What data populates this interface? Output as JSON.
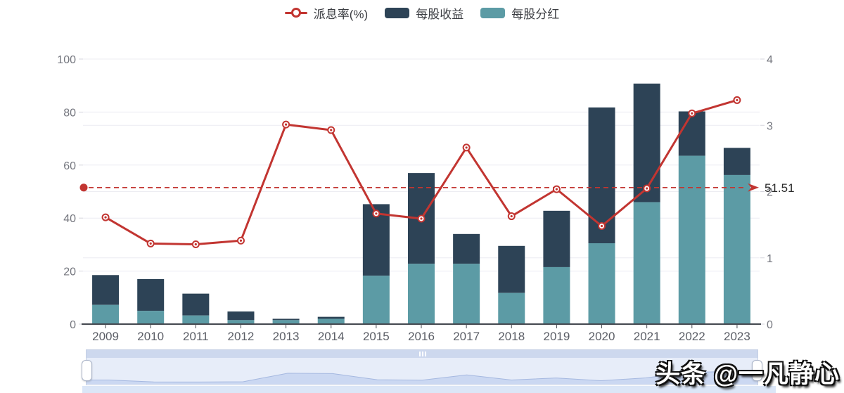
{
  "legend": {
    "items": [
      {
        "label": "派息率(%)",
        "type": "line",
        "color": "#c23531"
      },
      {
        "label": "每股收益",
        "type": "bar",
        "color": "#2d4356"
      },
      {
        "label": "每股分红",
        "type": "bar",
        "color": "#5c9ba5"
      }
    ]
  },
  "watermark": "头条 @一凡静心",
  "chart_data": {
    "type": "combo",
    "categories": [
      "2009",
      "2010",
      "2011",
      "2012",
      "2013",
      "2014",
      "2015",
      "2016",
      "2017",
      "2018",
      "2019",
      "2020",
      "2021",
      "2022",
      "2023"
    ],
    "series": [
      {
        "name": "派息率(%)",
        "type": "line",
        "axis": "left",
        "color": "#c23531",
        "values": [
          40.3,
          30.4,
          30.1,
          31.5,
          75.3,
          73.2,
          41.7,
          39.8,
          66.6,
          40.7,
          50.9,
          37.0,
          51.2,
          79.5,
          84.5
        ]
      },
      {
        "name": "每股收益",
        "type": "bar",
        "axis": "right",
        "color": "#2d4356",
        "stack_note": "full bar height, 每股分红 overlaps bottom",
        "values": [
          0.74,
          0.68,
          0.46,
          0.19,
          0.08,
          0.11,
          1.81,
          2.28,
          1.36,
          1.18,
          1.71,
          3.27,
          3.63,
          3.21,
          2.66
        ]
      },
      {
        "name": "每股分红",
        "type": "bar",
        "axis": "right",
        "color": "#5c9ba5",
        "values": [
          0.29,
          0.2,
          0.13,
          0.06,
          0.06,
          0.08,
          0.73,
          0.91,
          0.91,
          0.47,
          0.86,
          1.22,
          1.84,
          2.54,
          2.25
        ]
      }
    ],
    "left_axis": {
      "min": 0,
      "max": 100,
      "ticks": [
        0,
        20,
        40,
        60,
        80,
        100
      ]
    },
    "right_axis": {
      "min": 0,
      "max": 4,
      "ticks": [
        0,
        1,
        2,
        3,
        4
      ]
    },
    "mark_line": {
      "value": 51.51,
      "label": "51.51",
      "style": "dashed",
      "color": "#c23531"
    },
    "grid_color": "#ececf2",
    "axis_line_color": "#44484f",
    "legend_position": "top",
    "grid": true
  }
}
